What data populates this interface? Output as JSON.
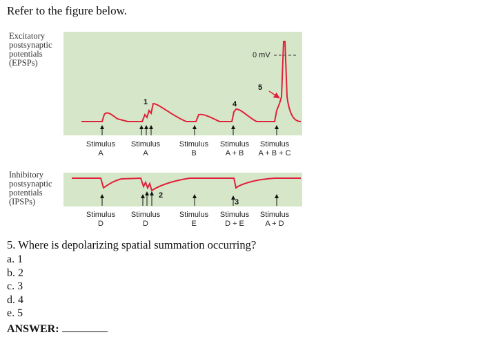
{
  "intro": "Refer to the figure below.",
  "epsp": {
    "label": [
      "Excitatory",
      "postsynaptic",
      "potentials",
      "(EPSPs)"
    ],
    "zero_label": "0 mV",
    "markers": [
      "1",
      "4",
      "5"
    ],
    "stimuli": [
      {
        "top": "Stimulus",
        "bottom": "A"
      },
      {
        "top": "Stimulus",
        "bottom": "A"
      },
      {
        "top": "Stimulus",
        "bottom": "B"
      },
      {
        "top": "Stimulus",
        "bottom": "A + B"
      },
      {
        "top": "Stimulus",
        "bottom": "A + B + C"
      }
    ]
  },
  "ipsp": {
    "label": [
      "Inhibitory",
      "postsynaptic",
      "potentials",
      "(IPSPs)"
    ],
    "markers": [
      "2",
      "3"
    ],
    "stimuli": [
      {
        "top": "Stimulus",
        "bottom": "D"
      },
      {
        "top": "Stimulus",
        "bottom": "D"
      },
      {
        "top": "Stimulus",
        "bottom": "E"
      },
      {
        "top": "Stimulus",
        "bottom": "D + E"
      },
      {
        "top": "Stimulus",
        "bottom": "A + D"
      }
    ]
  },
  "question": {
    "text": "5.  Where is depolarizing spatial summation occurring?",
    "options": [
      "a. 1",
      "b. 2",
      "c. 3",
      "d. 4",
      "e. 5"
    ],
    "answer_label": "ANSWER:"
  },
  "colors": {
    "panel": "#d6e6c9",
    "trace": "#e0203a"
  }
}
